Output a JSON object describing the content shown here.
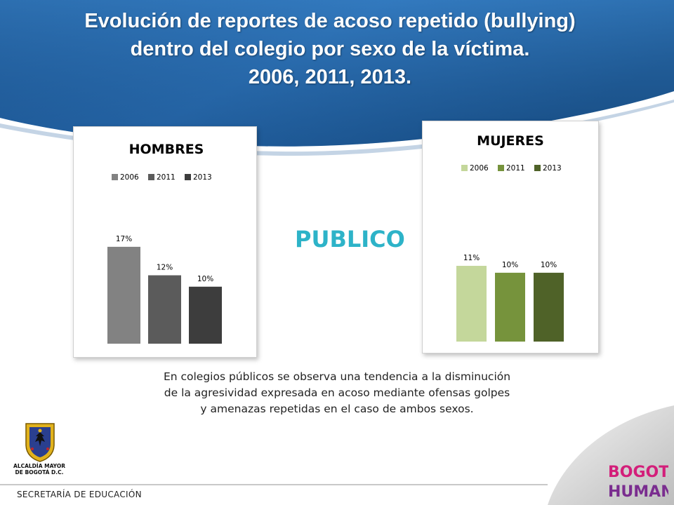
{
  "header": {
    "title_lines": [
      "Evolución de reportes de acoso repetido (bullying)",
      "dentro del colegio por sexo de la víctima.",
      "2006, 2011, 2013."
    ]
  },
  "section_label": "PUBLICO",
  "description_lines": [
    "En colegios públicos se observa una tendencia a la disminución",
    "de la agresividad expresada en acoso mediante ofensas golpes",
    "y amenazas repetidas en el caso de  ambos sexos."
  ],
  "footer": {
    "agency": "SECRETARÍA DE EDUCACIÓN",
    "alcaldia_lines": [
      "ALCALDÍA MAYOR",
      "DE BOGOTÁ D.C."
    ],
    "brand_logo": [
      "BOGOTÁ",
      "HUMANA"
    ]
  },
  "colors": {
    "header_blue": "#1f5fa0",
    "publico": "#2db3c8",
    "hombres_series": [
      "#828282",
      "#5b5b5b",
      "#3d3d3d"
    ],
    "mujeres_series": [
      "#c4d79b",
      "#76933c",
      "#4f6228"
    ]
  },
  "chart_data": [
    {
      "type": "bar",
      "title": "HOMBRES",
      "categories": [
        "2006",
        "2011",
        "2013"
      ],
      "values": [
        17,
        12,
        10
      ],
      "value_labels": [
        "17%",
        "12%",
        "10%"
      ],
      "legend": [
        "2006",
        "2011",
        "2013"
      ],
      "legend_position": "top",
      "ylim": [
        0,
        32
      ],
      "grid": false
    },
    {
      "type": "bar",
      "title": "MUJERES",
      "categories": [
        "2006",
        "2011",
        "2013"
      ],
      "values": [
        11,
        10,
        10
      ],
      "value_labels": [
        "11%",
        "10%",
        "10%"
      ],
      "legend": [
        "2006",
        "2011",
        "2013"
      ],
      "legend_position": "top",
      "ylim": [
        0,
        27
      ],
      "grid": false
    }
  ]
}
